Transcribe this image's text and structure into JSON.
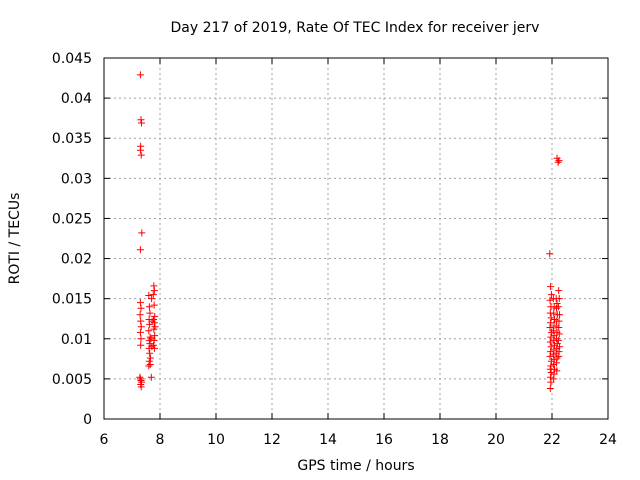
{
  "chart_data": {
    "type": "scatter",
    "title": "Day 217 of 2019, Rate Of TEC Index for receiver jerv",
    "xlabel": "GPS time / hours",
    "ylabel": "ROTI / TECUs",
    "xlim": [
      6,
      24
    ],
    "ylim": [
      0,
      0.045
    ],
    "xticks": [
      6,
      8,
      10,
      12,
      14,
      16,
      18,
      20,
      22,
      24
    ],
    "yticks": [
      0,
      0.005,
      0.01,
      0.015,
      0.02,
      0.025,
      0.03,
      0.035,
      0.04,
      0.045
    ],
    "xtick_labels": [
      "6",
      "8",
      "10",
      "12",
      "14",
      "16",
      "18",
      "20",
      "22",
      "24"
    ],
    "ytick_labels": [
      "0",
      "0.005",
      "0.01",
      "0.015",
      "0.02",
      "0.025",
      "0.03",
      "0.035",
      "0.04",
      "0.045"
    ],
    "grid": true,
    "marker": "+",
    "color": "#ff0000",
    "series": [
      {
        "points": [
          [
            7.3,
            0.0429
          ],
          [
            7.32,
            0.0373
          ],
          [
            7.34,
            0.0369
          ],
          [
            7.31,
            0.034
          ],
          [
            7.3,
            0.0335
          ],
          [
            7.33,
            0.0329
          ],
          [
            7.35,
            0.0232
          ],
          [
            7.3,
            0.0211
          ],
          [
            7.3,
            0.0145
          ],
          [
            7.32,
            0.0138
          ],
          [
            7.29,
            0.013
          ],
          [
            7.31,
            0.0122
          ],
          [
            7.33,
            0.0115
          ],
          [
            7.3,
            0.0108
          ],
          [
            7.32,
            0.01
          ],
          [
            7.31,
            0.0092
          ],
          [
            7.28,
            0.0052
          ],
          [
            7.3,
            0.005
          ],
          [
            7.32,
            0.0048
          ],
          [
            7.34,
            0.0046
          ],
          [
            7.31,
            0.0043
          ],
          [
            7.33,
            0.004
          ],
          [
            7.6,
            0.0154
          ],
          [
            7.62,
            0.014
          ],
          [
            7.64,
            0.0132
          ],
          [
            7.61,
            0.0124
          ],
          [
            7.63,
            0.0118
          ],
          [
            7.6,
            0.011
          ],
          [
            7.65,
            0.0102
          ],
          [
            7.62,
            0.0098
          ],
          [
            7.64,
            0.0094
          ],
          [
            7.61,
            0.0088
          ],
          [
            7.63,
            0.0082
          ],
          [
            7.66,
            0.0076
          ],
          [
            7.62,
            0.0072
          ],
          [
            7.65,
            0.0068
          ],
          [
            7.6,
            0.0066
          ],
          [
            7.7,
            0.015
          ],
          [
            7.72,
            0.0122
          ],
          [
            7.68,
            0.01
          ],
          [
            7.71,
            0.009
          ],
          [
            7.69,
            0.0052
          ],
          [
            7.78,
            0.0166
          ],
          [
            7.8,
            0.016
          ],
          [
            7.76,
            0.0155
          ],
          [
            7.79,
            0.0142
          ],
          [
            7.81,
            0.0128
          ],
          [
            7.77,
            0.0124
          ],
          [
            7.8,
            0.012
          ],
          [
            7.82,
            0.0115
          ],
          [
            7.78,
            0.0112
          ],
          [
            7.81,
            0.0104
          ],
          [
            7.79,
            0.0098
          ],
          [
            7.77,
            0.0092
          ],
          [
            7.8,
            0.0088
          ],
          [
            21.92,
            0.0206
          ],
          [
            21.95,
            0.0165
          ],
          [
            21.98,
            0.0155
          ],
          [
            21.93,
            0.0148
          ],
          [
            21.96,
            0.014
          ],
          [
            21.94,
            0.0132
          ],
          [
            21.97,
            0.0126
          ],
          [
            21.95,
            0.012
          ],
          [
            21.93,
            0.0114
          ],
          [
            21.98,
            0.0108
          ],
          [
            21.96,
            0.0102
          ],
          [
            21.94,
            0.0096
          ],
          [
            21.97,
            0.009
          ],
          [
            21.95,
            0.0084
          ],
          [
            21.93,
            0.0078
          ],
          [
            21.98,
            0.0072
          ],
          [
            21.96,
            0.0066
          ],
          [
            21.94,
            0.0062
          ],
          [
            21.97,
            0.0058
          ],
          [
            21.95,
            0.0052
          ],
          [
            21.96,
            0.0046
          ],
          [
            21.94,
            0.0038
          ],
          [
            22.05,
            0.015
          ],
          [
            22.08,
            0.014
          ],
          [
            22.06,
            0.0132
          ],
          [
            22.09,
            0.0124
          ],
          [
            22.07,
            0.0116
          ],
          [
            22.05,
            0.011
          ],
          [
            22.08,
            0.0104
          ],
          [
            22.06,
            0.0098
          ],
          [
            22.09,
            0.0092
          ],
          [
            22.07,
            0.0086
          ],
          [
            22.05,
            0.008
          ],
          [
            22.08,
            0.0074
          ],
          [
            22.06,
            0.0068
          ],
          [
            22.09,
            0.0062
          ],
          [
            22.07,
            0.0056
          ],
          [
            22.06,
            0.005
          ],
          [
            22.15,
            0.015
          ],
          [
            22.18,
            0.0144
          ],
          [
            22.16,
            0.0138
          ],
          [
            22.19,
            0.013
          ],
          [
            22.17,
            0.0122
          ],
          [
            22.15,
            0.0116
          ],
          [
            22.18,
            0.0108
          ],
          [
            22.16,
            0.01
          ],
          [
            22.19,
            0.0094
          ],
          [
            22.17,
            0.0088
          ],
          [
            22.15,
            0.0082
          ],
          [
            22.18,
            0.0076
          ],
          [
            22.16,
            0.007
          ],
          [
            22.17,
            0.006
          ],
          [
            22.18,
            0.0325
          ],
          [
            22.22,
            0.032
          ],
          [
            22.25,
            0.0322
          ],
          [
            22.24,
            0.016
          ],
          [
            22.26,
            0.015
          ],
          [
            22.23,
            0.014
          ],
          [
            22.27,
            0.013
          ],
          [
            22.25,
            0.0122
          ],
          [
            22.24,
            0.0114
          ],
          [
            22.26,
            0.0106
          ],
          [
            22.23,
            0.0098
          ],
          [
            22.27,
            0.009
          ],
          [
            22.25,
            0.0084
          ],
          [
            22.24,
            0.0078
          ]
        ]
      }
    ]
  }
}
